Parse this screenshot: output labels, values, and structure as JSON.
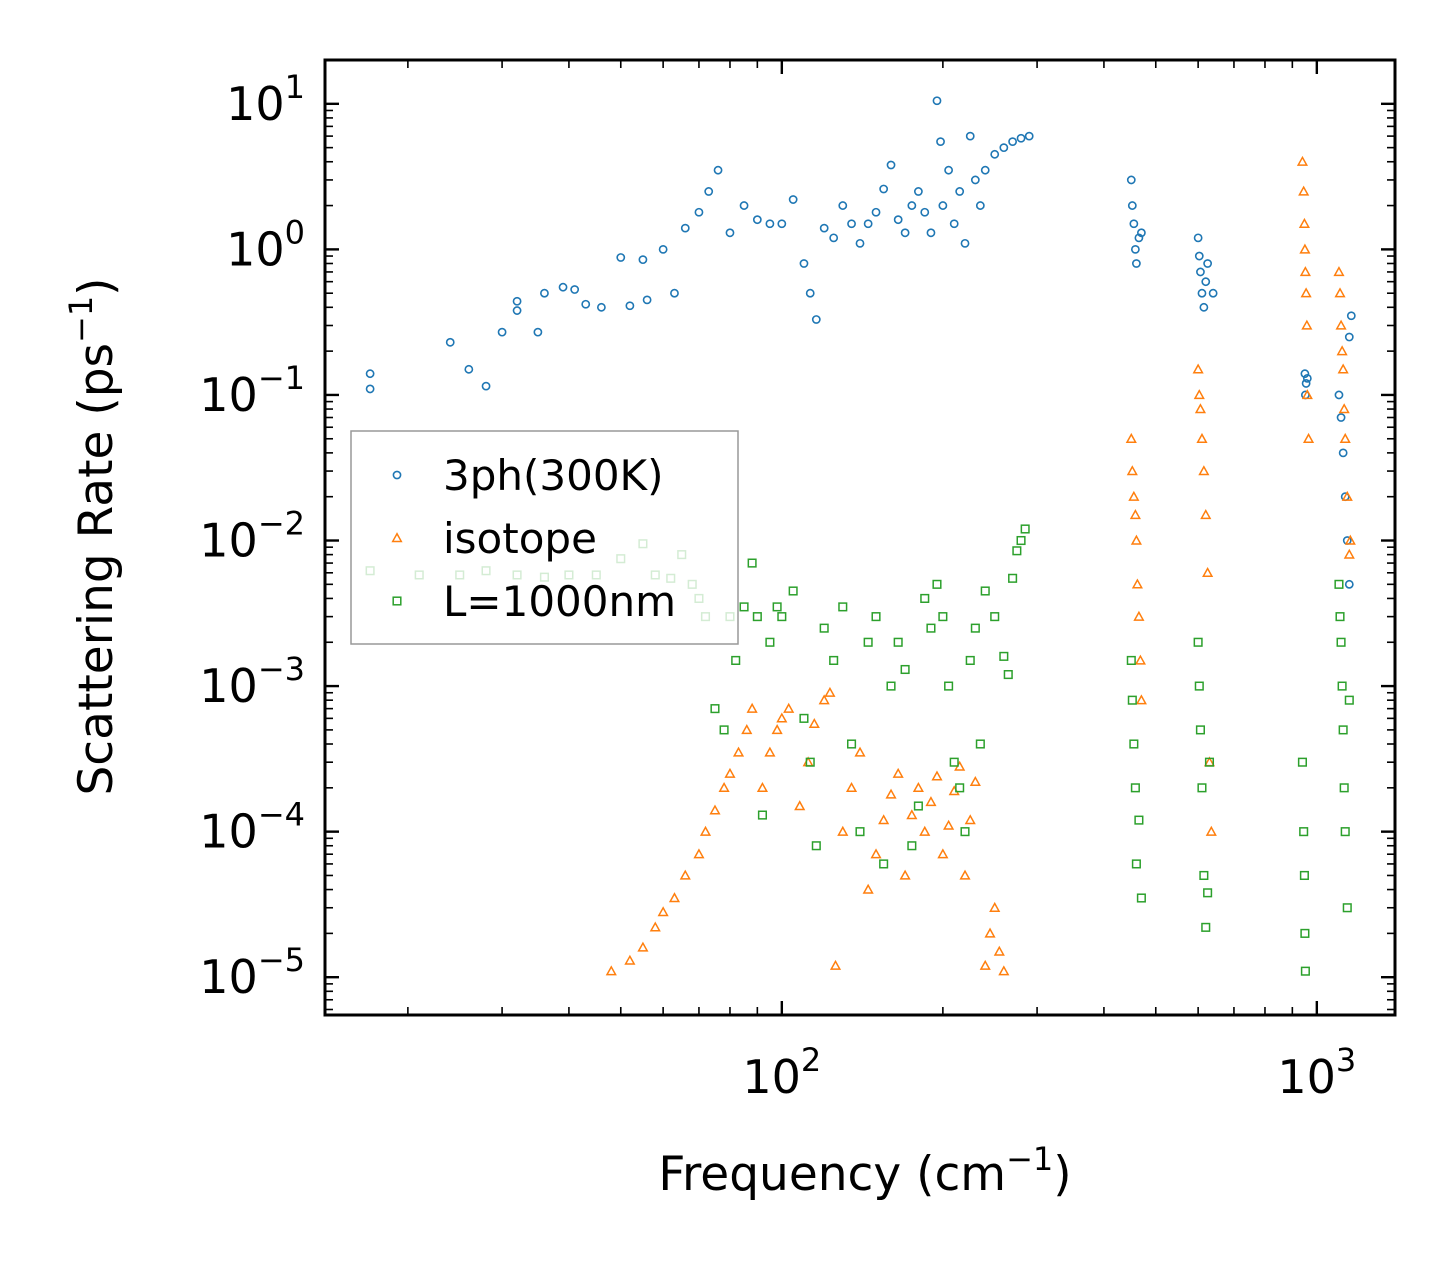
{
  "chart_data": {
    "type": "scatter",
    "xscale": "log",
    "yscale": "log",
    "xlabel": {
      "prefix": "Frequency (cm",
      "sup": "−1",
      "suffix": ")"
    },
    "ylabel": {
      "prefix": "Scattering Rate (ps",
      "sup": "−1",
      "suffix": ")"
    },
    "xlim": [
      14,
      1400
    ],
    "ylim": [
      5.5e-06,
      20
    ],
    "x_ticks": [
      {
        "value": 100,
        "base": "10",
        "exp": "2"
      },
      {
        "value": 1000,
        "base": "10",
        "exp": "3"
      }
    ],
    "y_ticks": [
      {
        "value": 10,
        "base": "10",
        "exp": "1"
      },
      {
        "value": 1,
        "base": "10",
        "exp": "0"
      },
      {
        "value": 0.1,
        "base": "10",
        "exp": "−1"
      },
      {
        "value": 0.01,
        "base": "10",
        "exp": "−2"
      },
      {
        "value": 0.001,
        "base": "10",
        "exp": "−3"
      },
      {
        "value": 0.0001,
        "base": "10",
        "exp": "−4"
      },
      {
        "value": 1e-05,
        "base": "10",
        "exp": "−5"
      }
    ],
    "legend_position": "center-left",
    "series": [
      {
        "name": "3ph(300K)",
        "marker": "circle",
        "color": "#1f77b4",
        "points": [
          [
            17,
            0.14
          ],
          [
            17,
            0.11
          ],
          [
            24,
            0.23
          ],
          [
            26,
            0.15
          ],
          [
            28,
            0.115
          ],
          [
            30,
            0.27
          ],
          [
            32,
            0.38
          ],
          [
            32,
            0.44
          ],
          [
            35,
            0.27
          ],
          [
            36,
            0.5
          ],
          [
            39,
            0.55
          ],
          [
            41,
            0.53
          ],
          [
            43,
            0.42
          ],
          [
            46,
            0.4
          ],
          [
            50,
            0.88
          ],
          [
            52,
            0.41
          ],
          [
            55,
            0.85
          ],
          [
            56,
            0.45
          ],
          [
            60,
            1.0
          ],
          [
            63,
            0.5
          ],
          [
            66,
            1.4
          ],
          [
            70,
            1.8
          ],
          [
            73,
            2.5
          ],
          [
            76,
            3.5
          ],
          [
            80,
            1.3
          ],
          [
            85,
            2.0
          ],
          [
            90,
            1.6
          ],
          [
            95,
            1.5
          ],
          [
            100,
            1.5
          ],
          [
            105,
            2.2
          ],
          [
            110,
            0.8
          ],
          [
            113,
            0.5
          ],
          [
            116,
            0.33
          ],
          [
            120,
            1.4
          ],
          [
            125,
            1.2
          ],
          [
            130,
            2.0
          ],
          [
            135,
            1.5
          ],
          [
            140,
            1.1
          ],
          [
            145,
            1.5
          ],
          [
            150,
            1.8
          ],
          [
            155,
            2.6
          ],
          [
            160,
            3.8
          ],
          [
            165,
            1.6
          ],
          [
            170,
            1.3
          ],
          [
            175,
            2.0
          ],
          [
            180,
            2.5
          ],
          [
            185,
            1.8
          ],
          [
            190,
            1.3
          ],
          [
            195,
            10.5
          ],
          [
            198,
            5.5
          ],
          [
            200,
            2.0
          ],
          [
            205,
            3.5
          ],
          [
            210,
            1.5
          ],
          [
            215,
            2.5
          ],
          [
            220,
            1.1
          ],
          [
            225,
            6.0
          ],
          [
            230,
            3.0
          ],
          [
            235,
            2.0
          ],
          [
            240,
            3.5
          ],
          [
            250,
            4.5
          ],
          [
            260,
            5.0
          ],
          [
            270,
            5.5
          ],
          [
            280,
            5.8
          ],
          [
            290,
            6.0
          ],
          [
            450,
            3.0
          ],
          [
            452,
            2.0
          ],
          [
            455,
            1.5
          ],
          [
            458,
            1.0
          ],
          [
            460,
            0.8
          ],
          [
            465,
            1.2
          ],
          [
            470,
            1.3
          ],
          [
            600,
            1.2
          ],
          [
            603,
            0.9
          ],
          [
            606,
            0.7
          ],
          [
            610,
            0.5
          ],
          [
            615,
            0.4
          ],
          [
            620,
            0.6
          ],
          [
            625,
            0.8
          ],
          [
            640,
            0.5
          ],
          [
            950,
            0.14
          ],
          [
            952,
            0.1
          ],
          [
            955,
            0.12
          ],
          [
            960,
            0.13
          ],
          [
            1100,
            0.1
          ],
          [
            1110,
            0.07
          ],
          [
            1120,
            0.04
          ],
          [
            1130,
            0.02
          ],
          [
            1140,
            0.01
          ],
          [
            1150,
            0.005
          ],
          [
            1160,
            0.35
          ],
          [
            1150,
            0.25
          ]
        ]
      },
      {
        "name": "isotope",
        "marker": "triangle",
        "color": "#ff7f0e",
        "points": [
          [
            48,
            1.1e-05
          ],
          [
            52,
            1.3e-05
          ],
          [
            55,
            1.6e-05
          ],
          [
            58,
            2.2e-05
          ],
          [
            60,
            2.8e-05
          ],
          [
            63,
            3.5e-05
          ],
          [
            66,
            5e-05
          ],
          [
            70,
            7e-05
          ],
          [
            72,
            0.0001
          ],
          [
            75,
            0.00014
          ],
          [
            78,
            0.0002
          ],
          [
            80,
            0.00025
          ],
          [
            83,
            0.00035
          ],
          [
            86,
            0.0005
          ],
          [
            88,
            0.0007
          ],
          [
            92,
            0.0002
          ],
          [
            95,
            0.00035
          ],
          [
            98,
            0.0005
          ],
          [
            100,
            0.0006
          ],
          [
            103,
            0.0007
          ],
          [
            108,
            0.00015
          ],
          [
            112,
            0.0003
          ],
          [
            115,
            0.00055
          ],
          [
            120,
            0.0008
          ],
          [
            123,
            0.0009
          ],
          [
            126,
            1.2e-05
          ],
          [
            130,
            0.0001
          ],
          [
            135,
            0.0002
          ],
          [
            140,
            0.00035
          ],
          [
            145,
            4e-05
          ],
          [
            150,
            7e-05
          ],
          [
            155,
            0.00012
          ],
          [
            160,
            0.00018
          ],
          [
            165,
            0.00025
          ],
          [
            170,
            5e-05
          ],
          [
            175,
            0.00013
          ],
          [
            180,
            0.0002
          ],
          [
            185,
            0.0001
          ],
          [
            190,
            0.00016
          ],
          [
            195,
            0.00024
          ],
          [
            200,
            7e-05
          ],
          [
            205,
            0.00011
          ],
          [
            210,
            0.00019
          ],
          [
            215,
            0.00028
          ],
          [
            220,
            5e-05
          ],
          [
            225,
            0.00012
          ],
          [
            230,
            0.00022
          ],
          [
            240,
            1.2e-05
          ],
          [
            245,
            2e-05
          ],
          [
            250,
            3e-05
          ],
          [
            255,
            1.5e-05
          ],
          [
            260,
            1.1e-05
          ],
          [
            450,
            0.05
          ],
          [
            452,
            0.03
          ],
          [
            455,
            0.02
          ],
          [
            458,
            0.015
          ],
          [
            460,
            0.01
          ],
          [
            462,
            0.005
          ],
          [
            465,
            0.003
          ],
          [
            468,
            0.0015
          ],
          [
            470,
            0.0008
          ],
          [
            600,
            0.15
          ],
          [
            603,
            0.1
          ],
          [
            606,
            0.08
          ],
          [
            610,
            0.05
          ],
          [
            615,
            0.03
          ],
          [
            620,
            0.015
          ],
          [
            625,
            0.006
          ],
          [
            630,
            0.0003
          ],
          [
            635,
            0.0001
          ],
          [
            940,
            4.0
          ],
          [
            945,
            2.5
          ],
          [
            948,
            1.5
          ],
          [
            950,
            1.0
          ],
          [
            952,
            0.7
          ],
          [
            955,
            0.5
          ],
          [
            958,
            0.3
          ],
          [
            960,
            0.1
          ],
          [
            965,
            0.05
          ],
          [
            1100,
            0.7
          ],
          [
            1105,
            0.5
          ],
          [
            1110,
            0.3
          ],
          [
            1115,
            0.2
          ],
          [
            1120,
            0.15
          ],
          [
            1125,
            0.08
          ],
          [
            1130,
            0.05
          ],
          [
            1140,
            0.02
          ],
          [
            1150,
            0.008
          ],
          [
            1155,
            0.01
          ]
        ]
      },
      {
        "name": "L=1000nm",
        "marker": "square",
        "color": "#2ca02c",
        "points": [
          [
            17,
            0.0062
          ],
          [
            21,
            0.0058
          ],
          [
            25,
            0.0058
          ],
          [
            28,
            0.0062
          ],
          [
            32,
            0.0058
          ],
          [
            36,
            0.0056
          ],
          [
            40,
            0.0058
          ],
          [
            45,
            0.0058
          ],
          [
            50,
            0.0075
          ],
          [
            55,
            0.0095
          ],
          [
            58,
            0.0058
          ],
          [
            62,
            0.0055
          ],
          [
            65,
            0.008
          ],
          [
            68,
            0.005
          ],
          [
            70,
            0.004
          ],
          [
            72,
            0.003
          ],
          [
            75,
            0.0007
          ],
          [
            78,
            0.0005
          ],
          [
            80,
            0.003
          ],
          [
            82,
            0.0015
          ],
          [
            85,
            0.0035
          ],
          [
            88,
            0.007
          ],
          [
            90,
            0.003
          ],
          [
            92,
            0.00013
          ],
          [
            95,
            0.002
          ],
          [
            98,
            0.0035
          ],
          [
            100,
            0.003
          ],
          [
            105,
            0.0045
          ],
          [
            110,
            0.0006
          ],
          [
            113,
            0.0003
          ],
          [
            116,
            8e-05
          ],
          [
            120,
            0.0025
          ],
          [
            125,
            0.0015
          ],
          [
            130,
            0.0035
          ],
          [
            135,
            0.0004
          ],
          [
            140,
            0.0001
          ],
          [
            145,
            0.002
          ],
          [
            150,
            0.003
          ],
          [
            155,
            6e-05
          ],
          [
            160,
            0.001
          ],
          [
            165,
            0.002
          ],
          [
            170,
            0.0013
          ],
          [
            175,
            8e-05
          ],
          [
            180,
            0.00015
          ],
          [
            185,
            0.004
          ],
          [
            190,
            0.0025
          ],
          [
            195,
            0.005
          ],
          [
            200,
            0.003
          ],
          [
            205,
            0.001
          ],
          [
            210,
            0.0003
          ],
          [
            215,
            0.0002
          ],
          [
            220,
            0.0001
          ],
          [
            225,
            0.0015
          ],
          [
            230,
            0.0025
          ],
          [
            235,
            0.0004
          ],
          [
            240,
            0.0045
          ],
          [
            250,
            0.003
          ],
          [
            260,
            0.0016
          ],
          [
            265,
            0.0012
          ],
          [
            270,
            0.0055
          ],
          [
            275,
            0.0085
          ],
          [
            280,
            0.01
          ],
          [
            285,
            0.012
          ],
          [
            450,
            0.0015
          ],
          [
            452,
            0.0008
          ],
          [
            455,
            0.0004
          ],
          [
            458,
            0.0002
          ],
          [
            460,
            6e-05
          ],
          [
            465,
            0.00012
          ],
          [
            470,
            3.5e-05
          ],
          [
            600,
            0.002
          ],
          [
            603,
            0.001
          ],
          [
            606,
            0.0005
          ],
          [
            610,
            0.0002
          ],
          [
            615,
            5e-05
          ],
          [
            620,
            2.2e-05
          ],
          [
            625,
            3.8e-05
          ],
          [
            630,
            0.0003
          ],
          [
            940,
            0.0003
          ],
          [
            945,
            0.0001
          ],
          [
            948,
            5e-05
          ],
          [
            950,
            2e-05
          ],
          [
            952,
            1.1e-05
          ],
          [
            1100,
            0.005
          ],
          [
            1105,
            0.003
          ],
          [
            1110,
            0.002
          ],
          [
            1115,
            0.001
          ],
          [
            1120,
            0.0005
          ],
          [
            1125,
            0.0002
          ],
          [
            1130,
            0.0001
          ],
          [
            1140,
            3e-05
          ],
          [
            1150,
            0.0008
          ]
        ]
      }
    ]
  }
}
